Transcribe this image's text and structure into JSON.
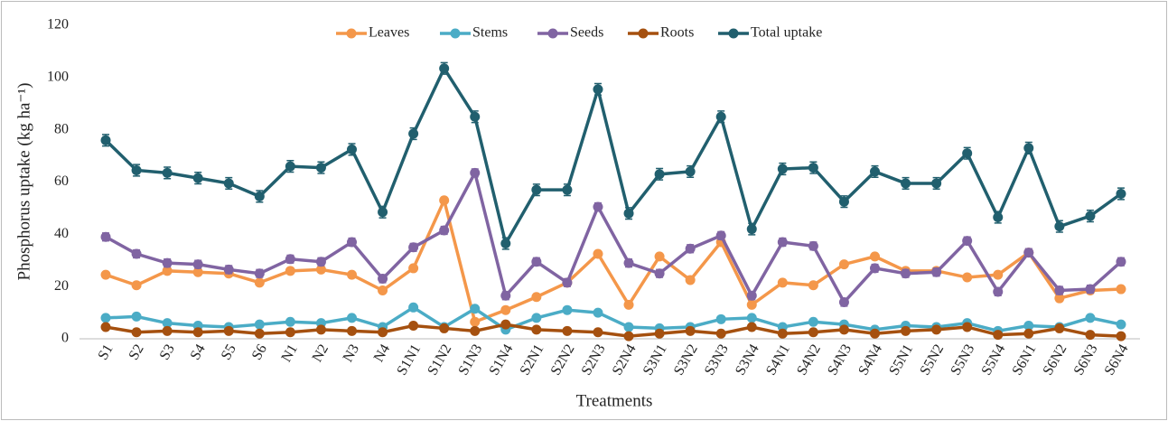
{
  "chart_data": {
    "type": "line",
    "y_label": "Phosphorus uptake (kg ha⁻¹)",
    "x_label": "Treatments",
    "categories": [
      "S1",
      "S2",
      "S3",
      "S4",
      "S5",
      "S6",
      "N1",
      "N2",
      "N3",
      "N4",
      "S1N1",
      "S1N2",
      "S1N3",
      "S1N4",
      "S2N1",
      "S2N2",
      "S2N3",
      "S2N4",
      "S3N1",
      "S3N2",
      "S3N3",
      "S3N4",
      "S4N1",
      "S4N2",
      "S4N3",
      "S4N4",
      "S5N1",
      "S5N2",
      "S5N3",
      "S5N4",
      "S6N1",
      "S6N2",
      "S6N3",
      "S6N4"
    ],
    "ylim": [
      0,
      120
    ],
    "yticks": [
      0,
      20,
      40,
      60,
      80,
      100,
      120
    ],
    "grid": false,
    "legend": "top",
    "series": [
      {
        "name": "Leaves",
        "color": "#f4974a",
        "values": [
          24.5,
          20.5,
          26,
          25.5,
          25,
          21.5,
          26,
          26.5,
          24.5,
          18.5,
          27,
          53,
          6.5,
          11,
          16,
          21.5,
          32.5,
          13,
          31.5,
          22.5,
          37,
          13,
          21.5,
          20.5,
          28.5,
          31.5,
          26,
          26,
          23.5,
          24.5,
          33,
          15.5,
          18.5,
          19
        ],
        "errors": [
          1,
          1,
          1,
          1,
          1,
          1,
          1,
          1,
          1,
          1,
          1,
          1,
          1,
          1,
          1,
          1,
          1,
          1,
          1,
          1,
          1,
          1,
          1,
          1,
          1,
          1,
          1,
          1,
          1,
          1,
          1,
          1,
          1,
          1
        ]
      },
      {
        "name": "Stems",
        "color": "#4bacc6",
        "values": [
          8,
          8.5,
          6,
          5,
          4.5,
          5.5,
          6.5,
          6,
          8,
          4.5,
          12,
          4.5,
          11.5,
          3.5,
          8,
          11,
          10,
          4.5,
          4,
          4.5,
          7.5,
          8,
          4.5,
          6.5,
          5.5,
          3.5,
          5,
          4.5,
          6,
          3,
          5,
          4.5,
          8,
          5.5
        ],
        "errors": [
          0.8,
          0.8,
          0.8,
          0.8,
          0.8,
          0.8,
          0.8,
          0.8,
          0.8,
          0.8,
          0.8,
          0.8,
          0.8,
          0.8,
          0.8,
          0.8,
          0.8,
          0.8,
          0.8,
          0.8,
          0.8,
          0.8,
          0.8,
          0.8,
          0.8,
          0.8,
          0.8,
          0.8,
          0.8,
          0.8,
          0.8,
          0.8,
          0.8,
          0.8
        ]
      },
      {
        "name": "Seeds",
        "color": "#8064a2",
        "values": [
          39,
          32.5,
          29,
          28.5,
          26.5,
          25,
          30.5,
          29.5,
          37,
          23,
          35,
          41.5,
          63.5,
          16.5,
          29.5,
          21.5,
          50.5,
          29,
          25,
          34.5,
          39.5,
          16.5,
          37,
          35.5,
          14,
          27,
          25,
          25.5,
          37.5,
          18,
          33,
          18.5,
          19,
          29.5
        ],
        "errors": [
          1.5,
          1.5,
          1.5,
          1.5,
          1.5,
          1.5,
          1.5,
          1.5,
          1.5,
          1.5,
          1.5,
          1.5,
          1.5,
          1.5,
          1.5,
          1.5,
          1.5,
          1.5,
          1.5,
          1.5,
          1.5,
          1.5,
          1.5,
          1.5,
          1.5,
          1.5,
          1.5,
          1.5,
          1.5,
          1.5,
          1.5,
          1.5,
          1.5,
          1.5
        ]
      },
      {
        "name": "Roots",
        "color": "#a5500f",
        "values": [
          4.5,
          2.5,
          3,
          2.5,
          3,
          2,
          2.5,
          3.5,
          3,
          2.5,
          5,
          4,
          3,
          5.5,
          3.5,
          3,
          2.5,
          1,
          2,
          3,
          2,
          4.5,
          2,
          2.5,
          3.5,
          2,
          3,
          3.5,
          4.5,
          1.5,
          2,
          4,
          1.5,
          1
        ],
        "errors": [
          0.8,
          0.8,
          0.8,
          0.8,
          0.8,
          0.8,
          0.8,
          0.8,
          0.8,
          0.8,
          0.8,
          0.8,
          0.8,
          0.8,
          0.8,
          0.8,
          0.8,
          0.8,
          0.8,
          0.8,
          0.8,
          0.8,
          0.8,
          0.8,
          0.8,
          0.8,
          0.8,
          0.8,
          0.8,
          0.8,
          0.8,
          0.8,
          0.8,
          0.8
        ]
      },
      {
        "name": "Total uptake",
        "color": "#215f6e",
        "values": [
          76,
          64.5,
          63.5,
          61.5,
          59.5,
          54.5,
          66,
          65.5,
          72.5,
          48.5,
          78.5,
          103.5,
          85,
          36.5,
          57,
          57,
          95.5,
          48,
          63,
          64,
          85,
          42,
          65,
          65.5,
          52.5,
          64,
          59.5,
          59.5,
          71,
          46.5,
          73,
          43,
          47,
          55.5
        ],
        "errors": [
          2.2,
          2.2,
          2.2,
          2.2,
          2.2,
          2.2,
          2.2,
          2.2,
          2.2,
          2.2,
          2.2,
          2.2,
          2.2,
          2.2,
          2.2,
          2.2,
          2.2,
          2.2,
          2.2,
          2.2,
          2.2,
          2.2,
          2.2,
          2.2,
          2.2,
          2.2,
          2.2,
          2.2,
          2.2,
          2.2,
          2.2,
          2.2,
          2.2,
          2.2
        ]
      }
    ]
  }
}
